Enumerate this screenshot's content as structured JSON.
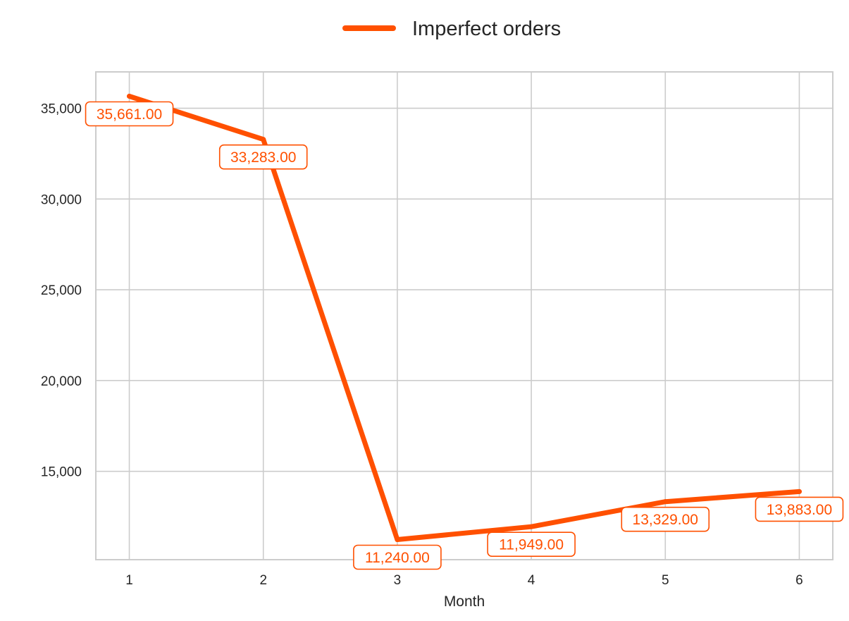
{
  "chart_data": {
    "type": "line",
    "xlabel": "Month",
    "ylabel": "",
    "x": [
      1,
      2,
      3,
      4,
      5,
      6
    ],
    "xticks": [
      "1",
      "2",
      "3",
      "4",
      "5",
      "6"
    ],
    "yticks": [
      "15,000",
      "20,000",
      "25,000",
      "30,000",
      "35,000"
    ],
    "ytick_values": [
      15000,
      20000,
      25000,
      30000,
      35000
    ],
    "xlim": [
      0.75,
      6.25
    ],
    "ylim": [
      10133,
      37000
    ],
    "grid": true,
    "legend_position": "top-center",
    "series": [
      {
        "name": "Imperfect orders",
        "color": "#FF5000",
        "values": [
          35661,
          33283,
          11240,
          11949,
          13329,
          13883
        ],
        "labels": [
          "35,661.00",
          "33,283.00",
          "11,240.00",
          "11,949.00",
          "13,329.00",
          "13,883.00"
        ]
      }
    ]
  }
}
